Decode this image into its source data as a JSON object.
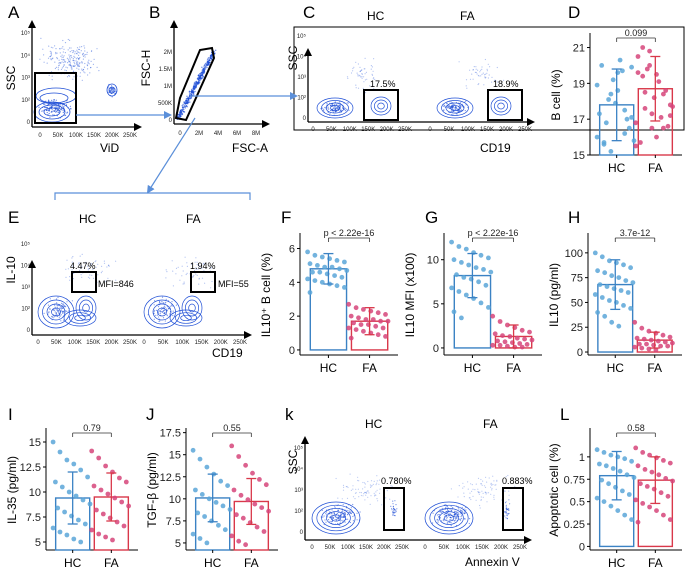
{
  "colors": {
    "hc": "#3b82c4",
    "fa": "#d9384a",
    "hc_dot": "#5aa6d8",
    "fa_dot": "#d6457a",
    "flow": "#1f4fd6",
    "arrow": "#5b8fd9"
  },
  "panels": {
    "A": {
      "letter": "A",
      "ylabel": "SSC",
      "xlabel": "ViD",
      "yticks": [
        "10⁵",
        "10⁴",
        "10³",
        "10²",
        "0"
      ],
      "xticks": [
        "0",
        "50K",
        "100K",
        "150K",
        "200K",
        "250K"
      ]
    },
    "B": {
      "letter": "B",
      "ylabel": "FSC-H",
      "xlabel": "FSC-A",
      "yticks": [
        "2M",
        "1.5M",
        "1M",
        "500K",
        "0"
      ],
      "xticks": [
        "0",
        "2M",
        "4M",
        "6M",
        "8M"
      ]
    },
    "C": {
      "letter": "C",
      "ylabel": "SSC",
      "xlabel": "CD19",
      "yticks": [
        "10⁵",
        "10⁴",
        "10³",
        "10²",
        "0"
      ],
      "xticks": [
        "0",
        "50K",
        "100K",
        "150K",
        "200K",
        "250K"
      ],
      "hc": {
        "label": "HC",
        "pct": "17.5%"
      },
      "fa": {
        "label": "FA",
        "pct": "18.9%"
      }
    },
    "E": {
      "letter": "E",
      "ylabel": "IL-10",
      "xlabel": "CD19",
      "yticks": [
        "10⁵",
        "10⁴",
        "10³",
        "10²",
        "0"
      ],
      "xticks": [
        "0",
        "50K",
        "100K",
        "150K",
        "200K",
        "250K"
      ],
      "hc": {
        "label": "HC",
        "pct": "4.47%",
        "mfi": "MFI=846"
      },
      "fa": {
        "label": "FA",
        "pct": "1.94%",
        "mfi": "MFI=55"
      }
    },
    "k": {
      "letter": "k",
      "ylabel": "SSC",
      "xlabel": "Annexin V",
      "yticks": [
        "10⁵",
        "10⁴",
        "10³",
        "10²",
        "0"
      ],
      "xticks": [
        "0",
        "50K",
        "100K",
        "150K",
        "200K",
        "250K"
      ],
      "hc": {
        "label": "HC",
        "pct": "0.780%"
      },
      "fa": {
        "label": "FA",
        "pct": "0.883%"
      }
    }
  },
  "chart_data": [
    {
      "id": "D",
      "type": "bar",
      "title": "D",
      "categories": [
        "HC",
        "FA"
      ],
      "ylabel": "B cell (%)",
      "ylim": [
        15,
        21.7
      ],
      "yticks": [
        15,
        17,
        19,
        21
      ],
      "values": [
        17.8,
        18.7
      ],
      "sd": [
        2.0,
        1.8
      ],
      "pvalue": "0.099",
      "points": {
        "HC": [
          16.0,
          15.6,
          15.2,
          18.6,
          17.5,
          19.9,
          17.3,
          16.8,
          19.2,
          20.3,
          17.0,
          15.8,
          20.0,
          18.1,
          17.9,
          19.7,
          16.5,
          18.9,
          15.7,
          18.4,
          19.6,
          16.2,
          17.1
        ],
        "FA": [
          15.5,
          21.0,
          20.8,
          19.5,
          16.5,
          17.2,
          20.5,
          18.5,
          17.3,
          19.1,
          18.6,
          17.7,
          15.7,
          19.8,
          18.2,
          17.1,
          16.6,
          16.8,
          19.4,
          20.0,
          16.0,
          18.4,
          17.8,
          19.6,
          17.6,
          16.5
        ]
      }
    },
    {
      "id": "F",
      "type": "bar",
      "title": "F",
      "categories": [
        "HC",
        "FA"
      ],
      "ylabel": "IL10+ B cell (%)",
      "ylim": [
        -0.3,
        6.8
      ],
      "yticks": [
        0,
        2,
        4,
        6
      ],
      "values": [
        4.8,
        1.7
      ],
      "sd": [
        0.9,
        0.8
      ],
      "pvalue": "p < 2.22e-16",
      "points": {
        "HC": [
          5.8,
          5.6,
          5.5,
          5.4,
          5.3,
          5.2,
          5.1,
          5.0,
          4.9,
          4.9,
          4.8,
          4.7,
          4.6,
          4.6,
          4.5,
          4.4,
          4.3,
          4.2,
          4.1,
          4.0,
          3.9,
          3.8,
          3.7,
          3.4
        ],
        "FA": [
          2.7,
          2.5,
          2.4,
          2.3,
          2.2,
          2.1,
          2.0,
          1.9,
          1.8,
          1.8,
          1.7,
          1.7,
          1.6,
          1.5,
          1.5,
          1.4,
          1.3,
          1.3,
          1.2,
          1.1,
          1.0,
          0.9,
          0.8,
          0.7
        ]
      }
    },
    {
      "id": "G",
      "type": "bar",
      "title": "G",
      "categories": [
        "HC",
        "FA"
      ],
      "ylabel": "IL10 MFI (x100)",
      "ylim": [
        -0.8,
        12.8
      ],
      "yticks": [
        0,
        5,
        10
      ],
      "values": [
        8.2,
        1.3
      ],
      "sd": [
        2.5,
        1.3
      ],
      "pvalue": "p < 2.22e-16",
      "points": {
        "HC": [
          12.0,
          11.5,
          11.2,
          10.8,
          10.5,
          10.2,
          10.0,
          9.7,
          9.4,
          9.1,
          8.9,
          8.6,
          8.3,
          8.0,
          7.8,
          7.5,
          7.1,
          6.8,
          6.4,
          6.0,
          5.6,
          5.1,
          4.6,
          4.1,
          3.4
        ],
        "FA": [
          3.6,
          3.0,
          2.6,
          2.3,
          2.0,
          1.8,
          1.6,
          1.4,
          1.3,
          1.1,
          1.0,
          0.9,
          0.8,
          0.7,
          0.6,
          0.5,
          0.4,
          0.3,
          0.3,
          0.2,
          0.1,
          0.1
        ]
      }
    },
    {
      "id": "H",
      "type": "bar",
      "title": "H",
      "categories": [
        "HC",
        "FA"
      ],
      "ylabel": "IL10 (pg/ml)",
      "ylim": [
        -3,
        118
      ],
      "yticks": [
        0,
        25,
        50,
        75,
        100
      ],
      "values": [
        68,
        12
      ],
      "sd": [
        25,
        8
      ],
      "pvalue": "3.7e-12",
      "points": {
        "HC": [
          100,
          96,
          92,
          90,
          88,
          85,
          82,
          80,
          77,
          75,
          72,
          70,
          68,
          66,
          64,
          62,
          60,
          58,
          55,
          52,
          50,
          47,
          44,
          40,
          36,
          30,
          26
        ],
        "FA": [
          30,
          24,
          21,
          19,
          17,
          15,
          14,
          13,
          12,
          11,
          10,
          9,
          8,
          8,
          7,
          6,
          6,
          5,
          4,
          3,
          2
        ]
      }
    },
    {
      "id": "I",
      "type": "bar",
      "title": "I",
      "categories": [
        "HC",
        "FA"
      ],
      "ylabel": "IL-35 (pg/ml)",
      "ylim": [
        4.2,
        16.2
      ],
      "yticks": [
        5,
        7.5,
        10,
        12.5,
        15
      ],
      "values": [
        9.4,
        9.5
      ],
      "sd": [
        2.6,
        2.4
      ],
      "pvalue": "0.79",
      "points": {
        "HC": [
          15.0,
          14.0,
          13.2,
          12.8,
          12.2,
          11.5,
          11.0,
          10.5,
          10.0,
          9.6,
          9.2,
          8.8,
          8.4,
          8.0,
          7.6,
          7.2,
          6.8,
          6.4,
          6.0,
          5.7,
          5.3,
          5.0
        ],
        "FA": [
          14.1,
          13.4,
          12.6,
          12.0,
          11.4,
          11.0,
          10.6,
          10.2,
          9.8,
          9.4,
          9.0,
          8.6,
          8.2,
          7.8,
          7.4,
          7.0,
          6.6,
          6.2,
          5.8,
          5.5,
          5.2
        ]
      }
    },
    {
      "id": "J",
      "type": "bar",
      "title": "J",
      "categories": [
        "HC",
        "FA"
      ],
      "ylabel": "TGF-β (pg/ml)",
      "ylim": [
        4.2,
        17.8
      ],
      "yticks": [
        5,
        7.5,
        10,
        12.5,
        15,
        17.5
      ],
      "values": [
        10.1,
        9.7
      ],
      "sd": [
        2.7,
        2.6
      ],
      "pvalue": "0.55",
      "points": {
        "HC": [
          15.5,
          14.5,
          13.6,
          12.8,
          12.0,
          11.5,
          11.0,
          10.5,
          10.0,
          9.6,
          9.2,
          8.8,
          8.4,
          8.0,
          7.5,
          7.0,
          6.5,
          6.0,
          5.5,
          5.0
        ],
        "FA": [
          16.0,
          14.8,
          13.8,
          12.9,
          12.2,
          11.6,
          11.0,
          10.4,
          9.9,
          9.4,
          9.0,
          8.6,
          8.2,
          7.8,
          7.3,
          6.8,
          6.3,
          5.8,
          5.2,
          4.8
        ]
      }
    },
    {
      "id": "L",
      "type": "bar",
      "title": "L",
      "categories": [
        "HC",
        "FA"
      ],
      "ylabel": "Apoptotic cell (%)",
      "ylim": [
        -0.04,
        1.3
      ],
      "yticks": [
        0,
        0.25,
        0.5,
        0.75,
        1
      ],
      "values": [
        0.79,
        0.74
      ],
      "sd": [
        0.27,
        0.26
      ],
      "pvalue": "0.58",
      "points": {
        "HC": [
          1.08,
          1.05,
          1.02,
          1.0,
          0.98,
          0.95,
          0.92,
          0.9,
          0.87,
          0.84,
          0.8,
          0.77,
          0.74,
          0.7,
          0.66,
          0.62,
          0.58,
          0.54,
          0.5,
          0.45,
          0.4,
          0.35,
          0.3
        ],
        "FA": [
          1.1,
          1.05,
          1.02,
          0.99,
          0.96,
          0.93,
          0.9,
          0.86,
          0.83,
          0.8,
          0.76,
          0.73,
          0.7,
          0.67,
          0.64,
          0.6,
          0.56,
          0.52,
          0.48,
          0.44,
          0.4,
          0.35,
          0.3,
          0.27
        ]
      }
    }
  ]
}
